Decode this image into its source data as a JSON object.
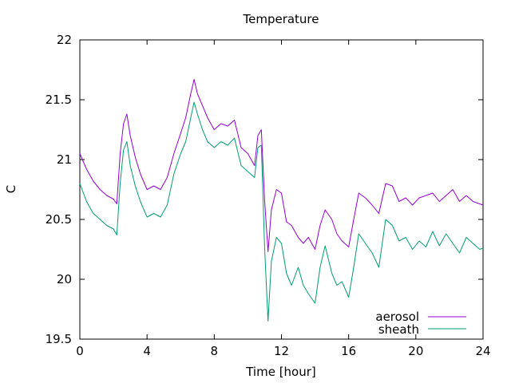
{
  "chart_data": {
    "type": "line",
    "title": "Temperature",
    "xlabel": "Time [hour]",
    "ylabel": "C",
    "xlim": [
      0,
      24
    ],
    "ylim": [
      19.5,
      22
    ],
    "xticks": [
      "0",
      "4",
      "8",
      "12",
      "16",
      "20",
      "24"
    ],
    "yticks": [
      "19.5",
      "20",
      "20.5",
      "21",
      "21.5",
      "22"
    ],
    "grid": false,
    "legend_position": "bottom-right",
    "colors": {
      "aerosol": "#9400d3",
      "sheath": "#009e73"
    },
    "series": [
      {
        "name": "aerosol",
        "x": [
          0,
          0.4,
          0.8,
          1.2,
          1.6,
          2.0,
          2.2,
          2.4,
          2.6,
          2.8,
          3.0,
          3.3,
          3.6,
          4.0,
          4.4,
          4.8,
          5.2,
          5.6,
          6.0,
          6.3,
          6.6,
          6.8,
          7.0,
          7.3,
          7.6,
          8.0,
          8.4,
          8.8,
          9.2,
          9.6,
          10.0,
          10.4,
          10.6,
          10.8,
          11.0,
          11.2,
          11.4,
          11.7,
          12.0,
          12.3,
          12.6,
          13.0,
          13.3,
          13.6,
          14.0,
          14.3,
          14.6,
          15.0,
          15.3,
          15.6,
          16.0,
          16.3,
          16.6,
          17.0,
          17.4,
          17.8,
          18.2,
          18.6,
          19.0,
          19.4,
          19.8,
          20.2,
          20.6,
          21.0,
          21.4,
          21.8,
          22.2,
          22.6,
          23.0,
          23.4,
          23.8,
          24.0
        ],
        "y": [
          21.05,
          20.92,
          20.82,
          20.75,
          20.7,
          20.67,
          20.63,
          21.05,
          21.3,
          21.38,
          21.2,
          21.02,
          20.88,
          20.75,
          20.78,
          20.75,
          20.85,
          21.05,
          21.22,
          21.35,
          21.55,
          21.67,
          21.55,
          21.45,
          21.35,
          21.25,
          21.3,
          21.28,
          21.33,
          21.1,
          21.05,
          20.95,
          21.2,
          21.25,
          20.65,
          20.23,
          20.58,
          20.75,
          20.72,
          20.48,
          20.45,
          20.35,
          20.3,
          20.35,
          20.25,
          20.45,
          20.58,
          20.5,
          20.38,
          20.32,
          20.27,
          20.5,
          20.72,
          20.68,
          20.62,
          20.55,
          20.8,
          20.78,
          20.65,
          20.68,
          20.62,
          20.68,
          20.7,
          20.72,
          20.65,
          20.7,
          20.75,
          20.65,
          20.7,
          20.65,
          20.63,
          20.62
        ]
      },
      {
        "name": "sheath",
        "x": [
          0,
          0.4,
          0.8,
          1.2,
          1.6,
          2.0,
          2.2,
          2.4,
          2.6,
          2.8,
          3.0,
          3.3,
          3.6,
          4.0,
          4.4,
          4.8,
          5.2,
          5.6,
          6.0,
          6.3,
          6.6,
          6.8,
          7.0,
          7.3,
          7.6,
          8.0,
          8.4,
          8.8,
          9.2,
          9.6,
          10.0,
          10.4,
          10.6,
          10.8,
          11.0,
          11.2,
          11.4,
          11.7,
          12.0,
          12.3,
          12.6,
          13.0,
          13.3,
          13.6,
          14.0,
          14.3,
          14.6,
          15.0,
          15.3,
          15.6,
          16.0,
          16.3,
          16.6,
          17.0,
          17.4,
          17.8,
          18.2,
          18.6,
          19.0,
          19.4,
          19.8,
          20.2,
          20.6,
          21.0,
          21.4,
          21.8,
          22.2,
          22.6,
          23.0,
          23.4,
          23.8,
          24.0
        ],
        "y": [
          20.8,
          20.65,
          20.55,
          20.5,
          20.45,
          20.42,
          20.37,
          20.8,
          21.08,
          21.15,
          20.95,
          20.78,
          20.65,
          20.52,
          20.55,
          20.52,
          20.62,
          20.88,
          21.05,
          21.15,
          21.35,
          21.48,
          21.38,
          21.25,
          21.15,
          21.1,
          21.15,
          21.12,
          21.18,
          20.95,
          20.9,
          20.85,
          21.1,
          21.12,
          20.25,
          19.65,
          20.15,
          20.35,
          20.3,
          20.05,
          19.95,
          20.1,
          19.95,
          19.88,
          19.8,
          20.1,
          20.28,
          20.05,
          19.95,
          19.98,
          19.85,
          20.1,
          20.38,
          20.3,
          20.22,
          20.1,
          20.5,
          20.45,
          20.32,
          20.35,
          20.25,
          20.32,
          20.27,
          20.4,
          20.28,
          20.38,
          20.3,
          20.22,
          20.35,
          20.3,
          20.25,
          20.26
        ]
      }
    ]
  }
}
